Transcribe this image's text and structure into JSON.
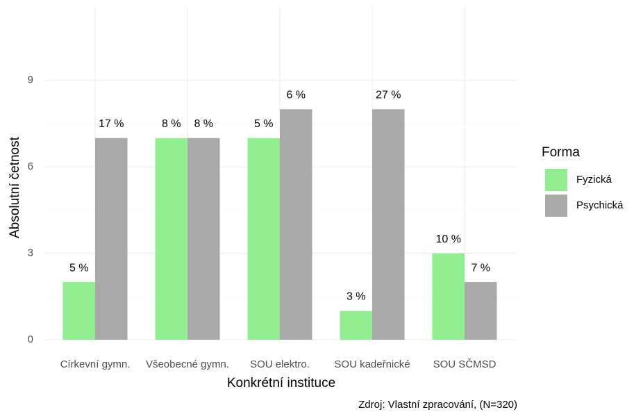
{
  "chart_data": {
    "type": "bar",
    "caption": "Zdroj: Vlastní zpracování, (N=320)",
    "x_label": "Konkrétní instituce",
    "y_label": "Absolutní četnost",
    "legend_title": "Forma",
    "legend_position": "right",
    "grid": true,
    "categories": [
      "Církevní gymn.",
      "Všeobecné gymn.",
      "SOU elektro.",
      "SOU kadeřnické",
      "SOU SČMSD"
    ],
    "series": [
      {
        "name": "Fyzická",
        "color": "#90ee90",
        "values": [
          2,
          7,
          7,
          1,
          3
        ],
        "labels": [
          "5 %",
          "8 %",
          "5 %",
          "3 %",
          "10 %"
        ]
      },
      {
        "name": "Psychická",
        "color": "#a9a9a9",
        "values": [
          7,
          7,
          8,
          8,
          2
        ],
        "labels": [
          "17 %",
          "8 %",
          "6 %",
          "27 %",
          "7 %"
        ]
      }
    ],
    "ylim": [
      0,
      11.55
    ],
    "yticks": [
      0,
      3,
      6,
      9
    ]
  }
}
